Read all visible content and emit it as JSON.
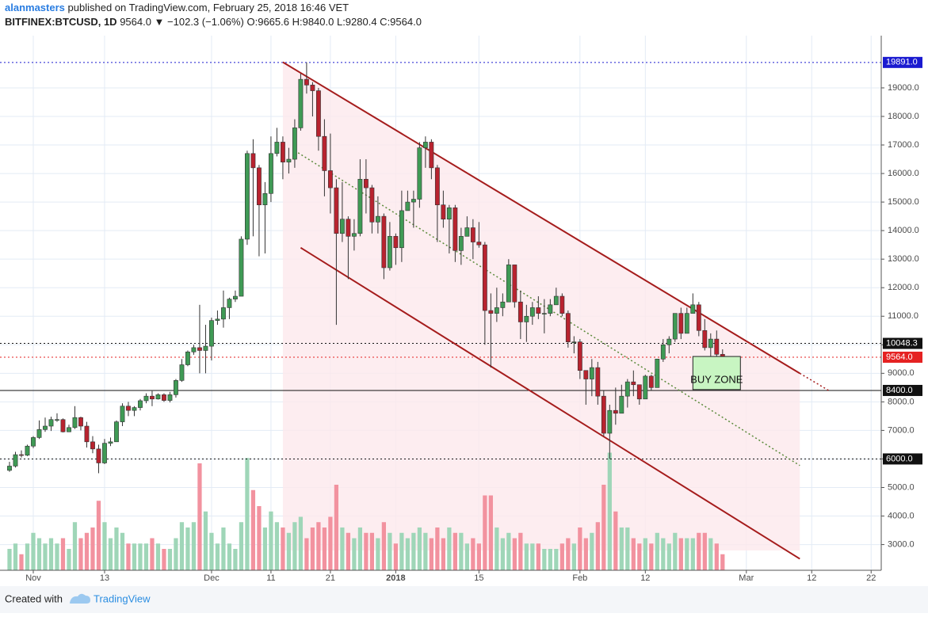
{
  "header": {
    "author": "alanmasters",
    "published": "published on TradingView.com, February 25, 2018 16:46 VET",
    "symbol": "BITFINEX:BTCUSD, 1D",
    "quote": "9564.0 ▼ −102.3 (−1.06%) O:9665.6 H:9840.0 L:9280.4 C:9564.0"
  },
  "footer": {
    "created": "Created with",
    "brand": "TradingView"
  },
  "chart_data": {
    "type": "candlestick",
    "up_color": "#3f9a55",
    "down_color": "#b8232f",
    "volume_up_color": "#9fd6b8",
    "volume_down_color": "#f2929f",
    "open": [
      5600,
      5750,
      6150,
      6130,
      6450,
      6750,
      7030,
      7150,
      7380,
      7380,
      6950,
      7100,
      7450,
      7150,
      6600,
      6350,
      5860,
      6550,
      6600,
      7300,
      7850,
      7700,
      7800,
      8040,
      8200,
      8100,
      8250,
      8050,
      8250,
      8750,
      9300,
      9750,
      9900,
      9800,
      9950,
      10850,
      10900,
      11300,
      11600,
      11700,
      13700,
      16700,
      16200,
      14900,
      15300,
      16700,
      17100,
      16400,
      16500,
      17600,
      19300,
      19100,
      18900,
      17300,
      16100,
      15500,
      13900,
      14400,
      13800,
      13900,
      15800,
      15500,
      14300,
      14500,
      12700,
      13800,
      13400,
      14700,
      15000,
      15100,
      16900,
      17100,
      16200,
      14900,
      14400,
      14800,
      13300,
      13800,
      14100,
      13600,
      13500,
      11200,
      11100,
      11300,
      11500,
      12800,
      11500,
      10800,
      11000,
      11300,
      11100,
      11100,
      11400,
      11700,
      11100,
      10100,
      10100,
      9100,
      8800,
      9200,
      8200,
      6900,
      7700,
      7600,
      8200,
      8700,
      8600,
      8100,
      8900,
      8500,
      9500,
      10000,
      10200,
      11100,
      10400,
      11100,
      11400,
      10500,
      9900,
      10200,
      9665.6
    ],
    "high": [
      5900,
      6250,
      6300,
      6500,
      6800,
      7350,
      7450,
      7480,
      7600,
      7420,
      7200,
      7850,
      7480,
      7300,
      6800,
      6500,
      6700,
      6750,
      7350,
      7950,
      8000,
      7850,
      8100,
      8300,
      8380,
      8300,
      8300,
      8350,
      8800,
      9500,
      9800,
      10000,
      11400,
      10700,
      10950,
      11200,
      11900,
      11650,
      11900,
      13800,
      16800,
      17200,
      16300,
      15700,
      17300,
      17600,
      17300,
      16900,
      17900,
      19500,
      19891,
      19200,
      19000,
      17900,
      17400,
      15800,
      15700,
      14500,
      14400,
      16500,
      16500,
      15600,
      15200,
      14600,
      14300,
      13900,
      15400,
      15400,
      15400,
      17100,
      17300,
      17200,
      16300,
      15400,
      14900,
      14900,
      14100,
      14500,
      14400,
      14300,
      13600,
      11800,
      12000,
      11800,
      13000,
      12800,
      11900,
      11400,
      11500,
      11700,
      11600,
      11600,
      12000,
      11800,
      11200,
      10300,
      10200,
      9100,
      9500,
      9400,
      8400,
      7900,
      8500,
      8600,
      8800,
      9100,
      8600,
      8950,
      8950,
      9500,
      10200,
      10300,
      11100,
      11300,
      11300,
      11800,
      11500,
      10900,
      10400,
      10500,
      9840
    ],
    "low": [
      5550,
      5700,
      6050,
      6100,
      6380,
      6700,
      6950,
      6980,
      7300,
      6930,
      6940,
      7050,
      7000,
      6400,
      6200,
      5500,
      5820,
      6450,
      6600,
      7150,
      7500,
      7500,
      7700,
      7950,
      7850,
      8080,
      8000,
      7980,
      8150,
      8700,
      9250,
      9650,
      9000,
      9000,
      9450,
      10700,
      10600,
      10900,
      11500,
      11700,
      13500,
      13800,
      13100,
      13200,
      15000,
      16600,
      15800,
      16000,
      16200,
      17500,
      18800,
      18000,
      16800,
      15200,
      14600,
      10700,
      13600,
      12300,
      13300,
      13800,
      14600,
      13900,
      13900,
      12300,
      12600,
      12800,
      12900,
      14700,
      14100,
      14800,
      16200,
      15800,
      13600,
      14100,
      13200,
      12900,
      12800,
      13800,
      13000,
      13400,
      10000,
      9200,
      10800,
      11000,
      11500,
      11300,
      10200,
      10100,
      10700,
      10900,
      10400,
      11000,
      11400,
      11000,
      9900,
      9700,
      8800,
      7900,
      8200,
      7900,
      6800,
      6000,
      7200,
      7600,
      7800,
      8200,
      7900,
      8100,
      8400,
      8500,
      9400,
      9700,
      10100,
      10200,
      10400,
      11100,
      10300,
      9800,
      9600,
      9400,
      9280.4
    ],
    "close": [
      5750,
      6150,
      6130,
      6450,
      6750,
      7030,
      7150,
      7380,
      7380,
      6950,
      7100,
      7450,
      7150,
      6600,
      6350,
      5860,
      6550,
      6600,
      7300,
      7850,
      7700,
      7800,
      8040,
      8200,
      8100,
      8250,
      8050,
      8250,
      8750,
      9300,
      9750,
      9900,
      9800,
      9950,
      10850,
      10900,
      11300,
      11600,
      11700,
      13700,
      16700,
      16200,
      14900,
      15300,
      16700,
      17100,
      16400,
      16500,
      17600,
      19300,
      19100,
      18900,
      17300,
      16100,
      15500,
      13900,
      14400,
      13800,
      13900,
      15800,
      15500,
      14300,
      14500,
      12700,
      13800,
      13400,
      14700,
      15000,
      15100,
      16900,
      17100,
      16200,
      14900,
      14400,
      14800,
      13300,
      13800,
      14100,
      13600,
      13500,
      11200,
      11100,
      11300,
      11500,
      12800,
      11500,
      10800,
      11000,
      11300,
      11100,
      11100,
      11400,
      11700,
      11100,
      10100,
      10100,
      9100,
      8800,
      9200,
      8200,
      6900,
      7700,
      7600,
      8200,
      8700,
      8600,
      8100,
      8900,
      8500,
      9500,
      10000,
      10200,
      11100,
      10400,
      11100,
      11400,
      10500,
      9900,
      10200,
      9665.6,
      9564
    ],
    "volume": [
      4,
      5,
      3,
      5,
      7,
      6,
      5,
      6,
      5,
      6,
      4,
      9,
      6,
      7,
      8,
      13,
      9,
      6,
      8,
      7,
      5,
      5,
      5,
      5,
      6,
      5,
      4,
      4,
      6,
      9,
      8,
      9,
      20,
      11,
      7,
      5,
      8,
      5,
      4,
      9,
      21,
      15,
      12,
      8,
      11,
      9,
      8,
      7,
      9,
      10,
      6,
      8,
      9,
      8,
      10,
      16,
      8,
      7,
      6,
      8,
      7,
      7,
      6,
      9,
      7,
      5,
      7,
      6,
      7,
      8,
      7,
      6,
      8,
      6,
      8,
      7,
      7,
      5,
      6,
      5,
      14,
      14,
      8,
      6,
      7,
      6,
      7,
      5,
      5,
      5,
      4,
      4,
      4,
      5,
      6,
      5,
      8,
      6,
      7,
      9,
      16,
      22,
      11,
      8,
      8,
      6,
      5,
      6,
      5,
      7,
      6,
      5,
      7,
      6,
      6,
      6,
      7,
      7,
      6,
      5,
      3
    ],
    "xlim": [
      -1.6,
      146.7
    ],
    "xticks": [
      {
        "value": 4,
        "label": "Nov"
      },
      {
        "value": 16,
        "label": "13"
      },
      {
        "value": 34,
        "label": "Dec"
      },
      {
        "value": 44,
        "label": "11"
      },
      {
        "value": 54,
        "label": "21"
      },
      {
        "value": 65,
        "label": "2018"
      },
      {
        "value": 79,
        "label": "15"
      },
      {
        "value": 96,
        "label": "Feb"
      },
      {
        "value": 107,
        "label": "12"
      },
      {
        "value": 124,
        "label": "Mar"
      },
      {
        "value": 135,
        "label": "12"
      },
      {
        "value": 145,
        "label": "22"
      }
    ],
    "ylim": [
      2100,
      20830
    ],
    "yticks": [
      {
        "value": 3000,
        "label": "3000.0"
      },
      {
        "value": 4000,
        "label": "4000.0"
      },
      {
        "value": 5000,
        "label": "5000.0"
      },
      {
        "value": 6000,
        "label": "6000.0"
      },
      {
        "value": 7000,
        "label": "7000.0"
      },
      {
        "value": 8000,
        "label": "8000.0"
      },
      {
        "value": 9000,
        "label": "9000.0"
      },
      {
        "value": 10000,
        "label": "10000.0"
      },
      {
        "value": 11000,
        "label": "11000.0"
      },
      {
        "value": 12000,
        "label": "12000.0"
      },
      {
        "value": 13000,
        "label": "13000.0"
      },
      {
        "value": 14000,
        "label": "14000.0"
      },
      {
        "value": 15000,
        "label": "15000.0"
      },
      {
        "value": 16000,
        "label": "16000.0"
      },
      {
        "value": 17000,
        "label": "17000.0"
      },
      {
        "value": 18000,
        "label": "18000.0"
      },
      {
        "value": 19000,
        "label": "19000.0"
      }
    ],
    "y2lim": [
      0,
      100
    ],
    "grid": true,
    "levels": [
      {
        "value": 19891,
        "label": "19891.0",
        "color": "#1a1ad0",
        "style": "dotted"
      },
      {
        "value": 10048.3,
        "label": "10048.3",
        "color": "#111111",
        "style": "dotted"
      },
      {
        "value": 9564,
        "label": "9564.0",
        "color": "#e52222",
        "style": "dotted"
      },
      {
        "value": 8400,
        "label": "8400.0",
        "color": "#111111",
        "style": "solid"
      },
      {
        "value": 6000,
        "label": "6000.0",
        "color": "#111111",
        "style": "dotted"
      }
    ],
    "trendlines": [
      {
        "x": [
          46,
          133
        ],
        "y": [
          19900,
          9000
        ],
        "color": "#a51c1c",
        "style": "solid"
      },
      {
        "x": [
          133,
          138
        ],
        "y": [
          9000,
          8380
        ],
        "color": "#a51c1c",
        "style": "dotted"
      },
      {
        "x": [
          49,
          133
        ],
        "y": [
          13400,
          2500
        ],
        "color": "#a51c1c",
        "style": "solid"
      },
      {
        "x": [
          48,
          133
        ],
        "y": [
          16800,
          5770
        ],
        "color": "#5a8a3a",
        "style": "dotted"
      }
    ],
    "buy_zone": {
      "label": "BUY ZONE",
      "x": [
        115,
        123
      ],
      "y": [
        8430,
        9590
      ],
      "color": "#c8f5c2"
    }
  }
}
